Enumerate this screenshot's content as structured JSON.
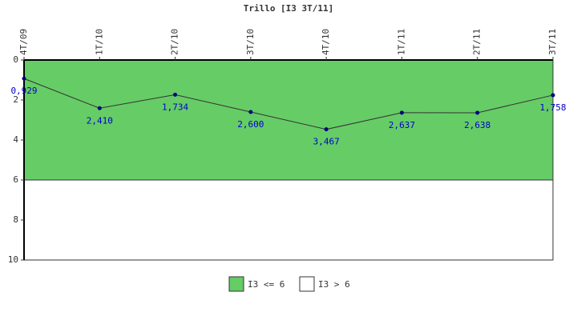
{
  "chart_data": {
    "type": "line",
    "title": "Trillo [I3 3T/11]",
    "categories": [
      "4T/09",
      "1T/10",
      "2T/10",
      "3T/10",
      "4T/10",
      "1T/11",
      "2T/11",
      "3T/11"
    ],
    "series": [
      {
        "name": "I3",
        "color": "#333333",
        "marker_color": "#000080",
        "values": [
          0.929,
          2.41,
          1.734,
          2.6,
          3.467,
          2.637,
          2.638,
          1.758
        ],
        "value_labels": [
          "0,929",
          "2,410",
          "1,734",
          "2,600",
          "3,467",
          "2,637",
          "2,638",
          "1,758"
        ]
      }
    ],
    "ylim": [
      0,
      10
    ],
    "yticks": [
      0,
      2,
      4,
      6,
      8,
      10
    ],
    "y_inverted": true,
    "bands": [
      {
        "name": "I3 <= 6",
        "from": 0,
        "to": 6,
        "color": "#66cc66"
      },
      {
        "name": "I3 > 6",
        "from": 6,
        "to": 10,
        "color": "#ffffff"
      }
    ]
  }
}
